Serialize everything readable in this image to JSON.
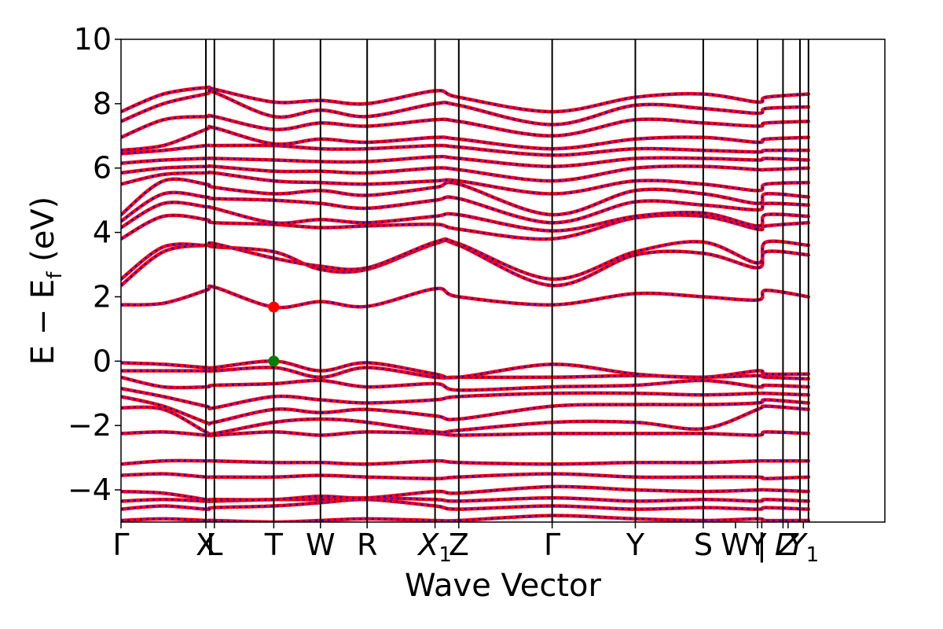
{
  "chart_data": {
    "type": "line",
    "title": "",
    "xlabel": "Wave Vector",
    "ylabel_main": "E − E",
    "ylabel_sub": "f",
    "ylabel_unit": " (eV)",
    "ylim": [
      -5,
      10
    ],
    "yticks": [
      -4,
      -2,
      0,
      2,
      4,
      6,
      8,
      10
    ],
    "ytick_labels": [
      "−4",
      "−2",
      "0",
      "2",
      "4",
      "6",
      "8",
      "10"
    ],
    "kpath_range": [
      0,
      9.0
    ],
    "kpoints": [
      {
        "label": "Γ",
        "sub": "",
        "italic": false,
        "x": 0.0
      },
      {
        "label": "X",
        "sub": "",
        "italic": false,
        "x": 1.0
      },
      {
        "label": "L",
        "sub": "",
        "italic": false,
        "x": 1.1
      },
      {
        "label": "T",
        "sub": "",
        "italic": false,
        "x": 1.8
      },
      {
        "label": "W",
        "sub": "",
        "italic": false,
        "x": 2.35
      },
      {
        "label": "R",
        "sub": "",
        "italic": false,
        "x": 2.9
      },
      {
        "label": "X",
        "sub": "1",
        "italic": true,
        "x": 3.7
      },
      {
        "label": "Z",
        "sub": "",
        "italic": false,
        "x": 3.98
      },
      {
        "label": "Γ",
        "sub": "",
        "italic": false,
        "x": 5.08
      },
      {
        "label": "Y",
        "sub": "",
        "italic": false,
        "x": 6.06
      },
      {
        "label": "S",
        "sub": "",
        "italic": false,
        "x": 6.86
      },
      {
        "label": "W",
        "sub": "",
        "italic": false,
        "x": 7.24
      },
      {
        "label": "Y",
        "sub": "",
        "italic": false,
        "x": 7.5
      },
      {
        "label": "|",
        "sub": "",
        "italic": false,
        "x": 7.55
      },
      {
        "label": "L",
        "sub": "",
        "italic": true,
        "x": 7.8
      },
      {
        "label": "Z",
        "sub": "",
        "italic": true,
        "x": 7.86
      },
      {
        "label": "Y",
        "sub": "1",
        "italic": true,
        "x": 8.04
      }
    ],
    "vertical_lines_x": [
      1.0,
      1.1,
      1.8,
      2.35,
      2.9,
      3.7,
      3.98,
      5.08,
      6.06,
      6.86,
      7.5,
      7.8,
      8.0,
      8.1
    ],
    "series_styles": [
      {
        "name": "",
        "color": "#ff0000",
        "style": "solid"
      },
      {
        "name": "",
        "color": "#0000ff",
        "style": "dotted"
      }
    ],
    "valence_band_maximum": {
      "x": 1.8,
      "y": 0.0,
      "color": "#008000"
    },
    "conduction_band_minimum": {
      "x": 1.8,
      "y": 1.68,
      "color": "#ff0000"
    },
    "bands": [
      {
        "x": [
          0.0,
          0.5,
          1.0,
          1.1,
          1.8,
          2.35,
          2.9,
          3.7,
          3.98,
          5.08,
          6.06,
          6.86,
          7.5,
          7.6,
          8.1
        ],
        "y": [
          -4.95,
          -4.9,
          -4.95,
          -4.95,
          -5.0,
          -4.95,
          -4.9,
          -4.95,
          -4.95,
          -4.8,
          -4.9,
          -4.95,
          -4.9,
          -4.95,
          -4.95
        ]
      },
      {
        "x": [
          0.0,
          0.5,
          1.0,
          1.1,
          1.8,
          2.35,
          2.9,
          3.7,
          3.98,
          5.08,
          6.06,
          6.86,
          7.5,
          7.6,
          8.1
        ],
        "y": [
          -4.6,
          -4.5,
          -4.6,
          -4.55,
          -4.5,
          -4.4,
          -4.3,
          -4.5,
          -4.6,
          -4.5,
          -4.6,
          -4.55,
          -4.6,
          -4.55,
          -4.6
        ]
      },
      {
        "x": [
          0.0,
          0.5,
          1.0,
          1.1,
          1.8,
          2.35,
          2.9,
          3.7,
          3.98,
          5.08,
          6.06,
          6.86,
          7.5,
          7.6,
          8.1
        ],
        "y": [
          -4.35,
          -4.3,
          -4.35,
          -4.35,
          -4.3,
          -4.3,
          -4.25,
          -4.3,
          -4.35,
          -4.25,
          -4.35,
          -4.3,
          -4.35,
          -4.3,
          -4.35
        ]
      },
      {
        "x": [
          0.0,
          0.5,
          1.0,
          1.1,
          1.8,
          2.35,
          2.9,
          3.7,
          3.98,
          5.08,
          6.06,
          6.86,
          7.5,
          7.6,
          8.1
        ],
        "y": [
          -4.05,
          -4.1,
          -4.3,
          -4.3,
          -4.3,
          -4.2,
          -4.25,
          -4.05,
          -4.1,
          -3.9,
          -4.0,
          -4.05,
          -4.0,
          -4.0,
          -4.05
        ]
      },
      {
        "x": [
          0.0,
          0.5,
          1.0,
          1.1,
          1.8,
          2.35,
          2.9,
          3.7,
          3.98,
          5.08,
          6.06,
          6.86,
          7.5,
          7.6,
          8.1
        ],
        "y": [
          -3.55,
          -3.5,
          -3.6,
          -3.6,
          -3.6,
          -3.55,
          -3.6,
          -3.65,
          -3.6,
          -3.5,
          -3.6,
          -3.6,
          -3.6,
          -3.65,
          -3.6
        ]
      },
      {
        "x": [
          0.0,
          0.5,
          1.0,
          1.1,
          1.8,
          2.35,
          2.9,
          3.7,
          3.98,
          5.08,
          6.06,
          6.86,
          7.5,
          7.6,
          8.1
        ],
        "y": [
          -3.2,
          -3.1,
          -3.1,
          -3.1,
          -3.15,
          -3.15,
          -3.2,
          -3.1,
          -3.15,
          -3.2,
          -3.15,
          -3.15,
          -3.1,
          -3.1,
          -3.1
        ]
      },
      {
        "x": [
          0.0,
          0.5,
          1.0,
          1.1,
          1.8,
          2.35,
          2.9,
          3.7,
          3.98,
          5.08,
          6.06,
          6.86,
          7.5,
          7.6,
          8.1
        ],
        "y": [
          -2.25,
          -2.2,
          -2.3,
          -2.3,
          -2.2,
          -2.3,
          -2.2,
          -2.25,
          -2.3,
          -2.25,
          -2.25,
          -2.25,
          -2.3,
          -2.2,
          -2.25
        ]
      },
      {
        "x": [
          0.0,
          0.5,
          1.0,
          1.1,
          1.8,
          2.35,
          2.9,
          3.7,
          3.98,
          5.08,
          6.06,
          6.86,
          7.5,
          7.6,
          8.1
        ],
        "y": [
          -1.45,
          -1.5,
          -2.2,
          -2.25,
          -1.9,
          -1.8,
          -1.9,
          -2.2,
          -2.15,
          -1.9,
          -1.9,
          -2.1,
          -1.5,
          -1.4,
          -1.5
        ]
      },
      {
        "x": [
          0.0,
          0.5,
          1.0,
          1.1,
          1.8,
          2.35,
          2.9,
          3.7,
          3.98,
          5.08,
          6.06,
          6.86,
          7.5,
          7.6,
          8.1
        ],
        "y": [
          -1.1,
          -1.4,
          -1.9,
          -1.9,
          -1.5,
          -1.6,
          -1.5,
          -1.7,
          -1.8,
          -1.4,
          -1.35,
          -1.35,
          -1.3,
          -1.2,
          -1.3
        ]
      },
      {
        "x": [
          0.0,
          0.5,
          1.0,
          1.1,
          1.8,
          2.35,
          2.9,
          3.7,
          3.98,
          5.08,
          6.06,
          6.86,
          7.5,
          7.6,
          8.1
        ],
        "y": [
          -0.85,
          -1.1,
          -1.4,
          -1.45,
          -1.1,
          -1.2,
          -1.3,
          -1.2,
          -1.1,
          -1.0,
          -1.0,
          -1.05,
          -1.0,
          -1.0,
          -1.05
        ]
      },
      {
        "x": [
          0.0,
          0.5,
          1.0,
          1.1,
          1.8,
          2.35,
          2.9,
          3.7,
          3.98,
          5.08,
          6.06,
          6.86,
          7.5,
          7.6,
          8.1
        ],
        "y": [
          -0.5,
          -0.8,
          -0.8,
          -0.75,
          -0.7,
          -0.6,
          -0.8,
          -0.7,
          -0.9,
          -0.8,
          -0.75,
          -0.6,
          -0.8,
          -0.75,
          -0.8
        ]
      },
      {
        "x": [
          0.0,
          0.5,
          1.0,
          1.1,
          1.8,
          2.35,
          2.9,
          3.7,
          3.98,
          5.08,
          6.06,
          6.86,
          7.5,
          7.6,
          8.1
        ],
        "y": [
          -0.3,
          -0.3,
          -0.3,
          -0.3,
          -0.2,
          -0.5,
          -0.2,
          -0.5,
          -0.5,
          -0.5,
          -0.45,
          -0.5,
          -0.45,
          -0.5,
          -0.55
        ]
      },
      {
        "x": [
          0.0,
          0.5,
          1.0,
          1.1,
          1.8,
          2.35,
          2.9,
          3.7,
          3.98,
          5.08,
          6.06,
          6.86,
          7.5,
          7.6,
          8.1
        ],
        "y": [
          -0.05,
          -0.1,
          -0.2,
          -0.2,
          0.0,
          -0.3,
          -0.05,
          -0.4,
          -0.5,
          -0.1,
          -0.4,
          -0.5,
          -0.3,
          -0.4,
          -0.4
        ]
      },
      {
        "x": [
          0.0,
          0.5,
          1.0,
          1.1,
          1.8,
          2.35,
          2.9,
          3.7,
          3.98,
          5.08,
          6.06,
          6.86,
          7.5,
          7.6,
          8.1
        ],
        "y": [
          1.75,
          1.8,
          2.2,
          2.3,
          1.68,
          1.85,
          1.7,
          2.25,
          2.0,
          1.75,
          2.1,
          2.0,
          1.9,
          2.2,
          2.0
        ]
      },
      {
        "x": [
          0.0,
          0.5,
          1.0,
          1.1,
          1.8,
          2.35,
          2.9,
          3.7,
          3.98,
          5.08,
          6.06,
          6.86,
          7.5,
          7.6,
          8.1
        ],
        "y": [
          2.35,
          3.4,
          3.6,
          3.55,
          3.4,
          2.85,
          2.85,
          3.65,
          3.6,
          2.35,
          3.3,
          3.35,
          2.9,
          3.4,
          3.3
        ]
      },
      {
        "x": [
          0.0,
          0.5,
          1.0,
          1.1,
          1.8,
          2.35,
          2.9,
          3.7,
          3.98,
          5.08,
          6.06,
          6.86,
          7.5,
          7.6,
          8.1
        ],
        "y": [
          2.55,
          3.55,
          3.6,
          3.65,
          3.2,
          2.95,
          2.9,
          3.7,
          3.65,
          2.55,
          3.4,
          3.7,
          3.05,
          3.7,
          3.6
        ]
      },
      {
        "x": [
          0.0,
          0.5,
          1.0,
          1.1,
          1.8,
          2.35,
          2.9,
          3.7,
          3.98,
          5.08,
          6.06,
          6.86,
          7.5,
          7.6,
          8.1
        ],
        "y": [
          3.8,
          4.5,
          4.4,
          4.3,
          4.25,
          4.15,
          4.2,
          4.25,
          4.1,
          3.8,
          4.45,
          4.5,
          4.1,
          4.2,
          4.3
        ]
      },
      {
        "x": [
          0.0,
          0.5,
          1.0,
          1.1,
          1.8,
          2.35,
          2.9,
          3.7,
          3.98,
          5.08,
          6.06,
          6.86,
          7.5,
          7.6,
          8.1
        ],
        "y": [
          4.15,
          4.9,
          4.8,
          4.75,
          4.3,
          4.4,
          4.3,
          4.5,
          4.55,
          4.05,
          4.5,
          4.6,
          4.2,
          4.55,
          4.5
        ]
      },
      {
        "x": [
          0.0,
          0.5,
          1.0,
          1.1,
          1.8,
          2.35,
          2.9,
          3.7,
          3.98,
          5.08,
          6.06,
          6.86,
          7.5,
          7.6,
          8.1
        ],
        "y": [
          4.35,
          5.2,
          5.1,
          5.05,
          5.0,
          4.9,
          4.75,
          5.0,
          5.05,
          4.3,
          4.95,
          4.85,
          4.7,
          4.9,
          4.85
        ]
      },
      {
        "x": [
          0.0,
          0.5,
          1.0,
          1.1,
          1.8,
          2.35,
          2.9,
          3.7,
          3.98,
          5.08,
          6.06,
          6.86,
          7.5,
          7.6,
          8.1
        ],
        "y": [
          4.55,
          5.6,
          5.5,
          5.4,
          5.2,
          5.3,
          5.15,
          5.4,
          5.5,
          4.55,
          5.3,
          5.2,
          4.9,
          5.2,
          5.1
        ]
      },
      {
        "x": [
          0.0,
          0.5,
          1.0,
          1.1,
          1.8,
          2.35,
          2.9,
          3.7,
          3.98,
          5.08,
          6.06,
          6.86,
          7.5,
          7.6,
          8.1
        ],
        "y": [
          5.5,
          5.8,
          5.85,
          5.85,
          5.6,
          5.55,
          5.5,
          5.6,
          5.6,
          5.2,
          5.6,
          5.5,
          5.3,
          5.5,
          5.55
        ]
      },
      {
        "x": [
          0.0,
          0.5,
          1.0,
          1.1,
          1.8,
          2.35,
          2.9,
          3.7,
          3.98,
          5.08,
          6.06,
          6.86,
          7.5,
          7.6,
          8.1
        ],
        "y": [
          5.85,
          6.0,
          6.05,
          6.05,
          5.9,
          5.9,
          5.85,
          6.0,
          5.95,
          5.6,
          6.0,
          6.05,
          5.95,
          5.95,
          6.0
        ]
      },
      {
        "x": [
          0.0,
          0.5,
          1.0,
          1.1,
          1.8,
          2.35,
          2.9,
          3.7,
          3.98,
          5.08,
          6.06,
          6.86,
          7.5,
          7.6,
          8.1
        ],
        "y": [
          6.15,
          6.25,
          6.3,
          6.3,
          6.25,
          6.2,
          6.2,
          6.35,
          6.3,
          6.05,
          6.3,
          6.3,
          6.25,
          6.3,
          6.25
        ]
      },
      {
        "x": [
          0.0,
          0.5,
          1.0,
          1.1,
          1.8,
          2.35,
          2.9,
          3.7,
          3.98,
          5.08,
          6.06,
          6.86,
          7.5,
          7.6,
          8.1
        ],
        "y": [
          6.45,
          6.55,
          6.7,
          6.7,
          6.7,
          6.6,
          6.6,
          6.7,
          6.65,
          6.4,
          6.6,
          6.55,
          6.5,
          6.55,
          6.55
        ]
      },
      {
        "x": [
          0.0,
          0.5,
          1.0,
          1.1,
          1.8,
          2.35,
          2.9,
          3.7,
          3.98,
          5.08,
          6.06,
          6.86,
          7.5,
          7.6,
          8.1
        ],
        "y": [
          6.55,
          6.7,
          7.2,
          7.25,
          6.75,
          6.9,
          6.8,
          6.95,
          6.9,
          6.6,
          6.9,
          6.95,
          6.8,
          6.9,
          6.95
        ]
      },
      {
        "x": [
          0.0,
          0.5,
          1.0,
          1.1,
          1.8,
          2.35,
          2.9,
          3.7,
          3.98,
          5.08,
          6.06,
          6.86,
          7.5,
          7.6,
          8.1
        ],
        "y": [
          6.95,
          7.5,
          7.6,
          7.6,
          7.2,
          7.4,
          7.3,
          7.5,
          7.45,
          7.0,
          7.5,
          7.4,
          7.3,
          7.4,
          7.45
        ]
      },
      {
        "x": [
          0.0,
          0.5,
          1.0,
          1.1,
          1.8,
          2.35,
          2.9,
          3.7,
          3.98,
          5.08,
          6.06,
          6.86,
          7.5,
          7.6,
          8.1
        ],
        "y": [
          7.45,
          8.0,
          8.3,
          8.35,
          7.6,
          7.8,
          7.6,
          8.0,
          7.95,
          7.35,
          7.95,
          7.85,
          7.7,
          7.85,
          7.9
        ]
      },
      {
        "x": [
          0.0,
          0.5,
          1.0,
          1.1,
          1.8,
          2.35,
          2.9,
          3.7,
          3.98,
          5.08,
          6.06,
          6.86,
          7.5,
          7.6,
          8.1
        ],
        "y": [
          7.75,
          8.3,
          8.5,
          8.45,
          8.05,
          8.1,
          8.0,
          8.4,
          8.2,
          7.75,
          8.2,
          8.3,
          8.05,
          8.2,
          8.3
        ]
      }
    ]
  }
}
